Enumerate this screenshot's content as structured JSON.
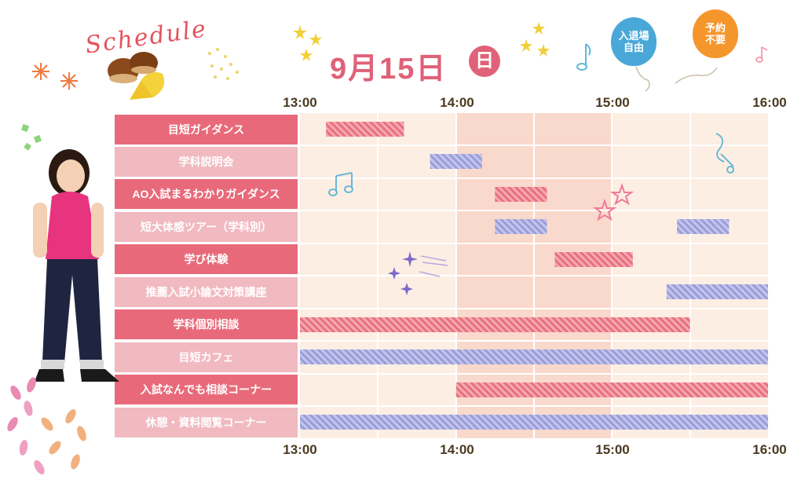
{
  "header": {
    "title": "Schedule",
    "date": "9月15日",
    "day": "日",
    "badges": [
      "入退場\n自由",
      "予約\n不要"
    ]
  },
  "chart_data": {
    "type": "gantt",
    "x_ticks": [
      "13:00",
      "14:00",
      "15:00",
      "16:00"
    ],
    "x_range": [
      "13:00",
      "16:00"
    ],
    "rows": [
      {
        "label": "目短ガイダンス",
        "bars": [
          {
            "start": "13:10",
            "end": "13:40",
            "color": "red"
          }
        ]
      },
      {
        "label": "学科説明会",
        "bars": [
          {
            "start": "13:50",
            "end": "14:10",
            "color": "blue"
          }
        ]
      },
      {
        "label": "AO入試まるわかりガイダンス",
        "bars": [
          {
            "start": "14:15",
            "end": "14:35",
            "color": "red"
          }
        ]
      },
      {
        "label": "短大体感ツアー（学科別）",
        "bars": [
          {
            "start": "14:15",
            "end": "14:35",
            "color": "blue"
          },
          {
            "start": "15:25",
            "end": "15:45",
            "color": "blue"
          }
        ]
      },
      {
        "label": "学び体験",
        "bars": [
          {
            "start": "14:38",
            "end": "15:08",
            "color": "red"
          }
        ]
      },
      {
        "label": "推薦入試小論文対策講座",
        "bars": [
          {
            "start": "15:21",
            "end": "16:00",
            "color": "blue"
          }
        ]
      },
      {
        "label": "学科個別相談",
        "bars": [
          {
            "start": "13:00",
            "end": "15:30",
            "color": "red"
          }
        ]
      },
      {
        "label": "目短カフェ",
        "bars": [
          {
            "start": "13:00",
            "end": "16:00",
            "color": "blue"
          }
        ]
      },
      {
        "label": "入試なんでも相談コーナー",
        "bars": [
          {
            "start": "14:00",
            "end": "16:00",
            "color": "red"
          }
        ]
      },
      {
        "label": "休憩・資料閲覧コーナー",
        "bars": [
          {
            "start": "13:00",
            "end": "16:00",
            "color": "blue"
          }
        ]
      }
    ],
    "colors": {
      "red": "#e8707e",
      "blue": "#9a9dd9",
      "row_dark": "#e86a7a",
      "row_light": "#f1b9c0"
    }
  }
}
